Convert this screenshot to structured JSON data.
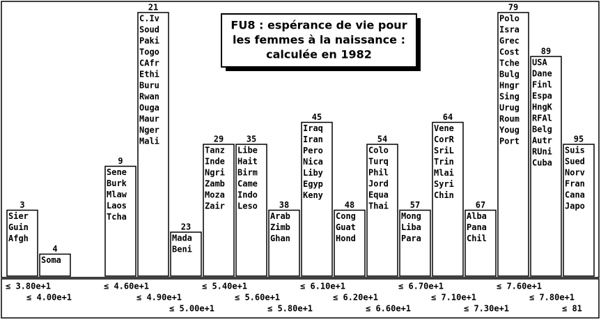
{
  "chart_data": {
    "type": "bar",
    "title": [
      "FU8 : espérance de vie pour",
      "les femmes à la naissance :",
      "calculée en 1982"
    ],
    "categories": [
      "≤ 3.80e+1",
      "≤ 4.00e+1",
      "≤ 4.60e+1",
      "≤ 4.90e+1",
      "≤ 5.00e+1",
      "≤ 5.40e+1",
      "≤ 5.60e+1",
      "≤ 5.80e+1",
      "≤ 6.10e+1",
      "≤ 6.20e+1",
      "≤ 6.60e+1",
      "≤ 6.70e+1",
      "≤ 7.10e+1",
      "≤ 7.30e+1",
      "≤ 7.60e+1",
      "≤ 7.80e+1",
      "≤ 81"
    ],
    "values": [
      3,
      1,
      5,
      12,
      2,
      6,
      6,
      3,
      7,
      3,
      6,
      3,
      7,
      3,
      12,
      10,
      6
    ],
    "top_labels": [
      3,
      4,
      9,
      21,
      23,
      29,
      35,
      38,
      45,
      48,
      54,
      57,
      64,
      67,
      79,
      89,
      95
    ],
    "members": [
      [
        "Sier",
        "Guin",
        "Afgh"
      ],
      [
        "Soma"
      ],
      [
        "Sene",
        "Burk",
        "Mlaw",
        "Laos",
        "Tcha"
      ],
      [
        "C.Iv",
        "Soud",
        "Paki",
        "Togo",
        "CAfr",
        "Ethi",
        "Buru",
        "Rwan",
        "Ouga",
        "Maur",
        "Nger",
        "Mali"
      ],
      [
        "Mada",
        "Beni"
      ],
      [
        "Tanz",
        "Inde",
        "Ngri",
        "Zamb",
        "Moza",
        "Zair"
      ],
      [
        "Libe",
        "Hait",
        "Birm",
        "Came",
        "Indo",
        "Leso"
      ],
      [
        "Arab",
        "Zimb",
        "Ghan"
      ],
      [
        "Iraq",
        "Iran",
        "Pero",
        "Nica",
        "Liby",
        "Egyp",
        "Keny"
      ],
      [
        "Cong",
        "Guat",
        "Hond"
      ],
      [
        "Colo",
        "Turq",
        "Phil",
        "Jord",
        "Equa",
        "Thai"
      ],
      [
        "Mong",
        "Liba",
        "Para"
      ],
      [
        "Vene",
        "CorR",
        "SriL",
        "Trin",
        "Mlai",
        "Syri",
        "Chin"
      ],
      [
        "Alba",
        "Pana",
        "Chil"
      ],
      [
        "Polo",
        "Isra",
        "Grec",
        "Cost",
        "Tche",
        "Bulg",
        "Hngr",
        "Sing",
        "Urug",
        "Roum",
        "Youg",
        "Port"
      ],
      [
        "USA",
        "Dane",
        "Finl",
        "Espa",
        "HngK",
        "RFAl",
        "Belg",
        "Autr",
        "RUni",
        "Cuba"
      ],
      [
        "Suis",
        "Sued",
        "Norv",
        "Fran",
        "Cana",
        "Japo"
      ]
    ],
    "ylim": [
      0,
      12
    ],
    "color": "#ffffff"
  }
}
